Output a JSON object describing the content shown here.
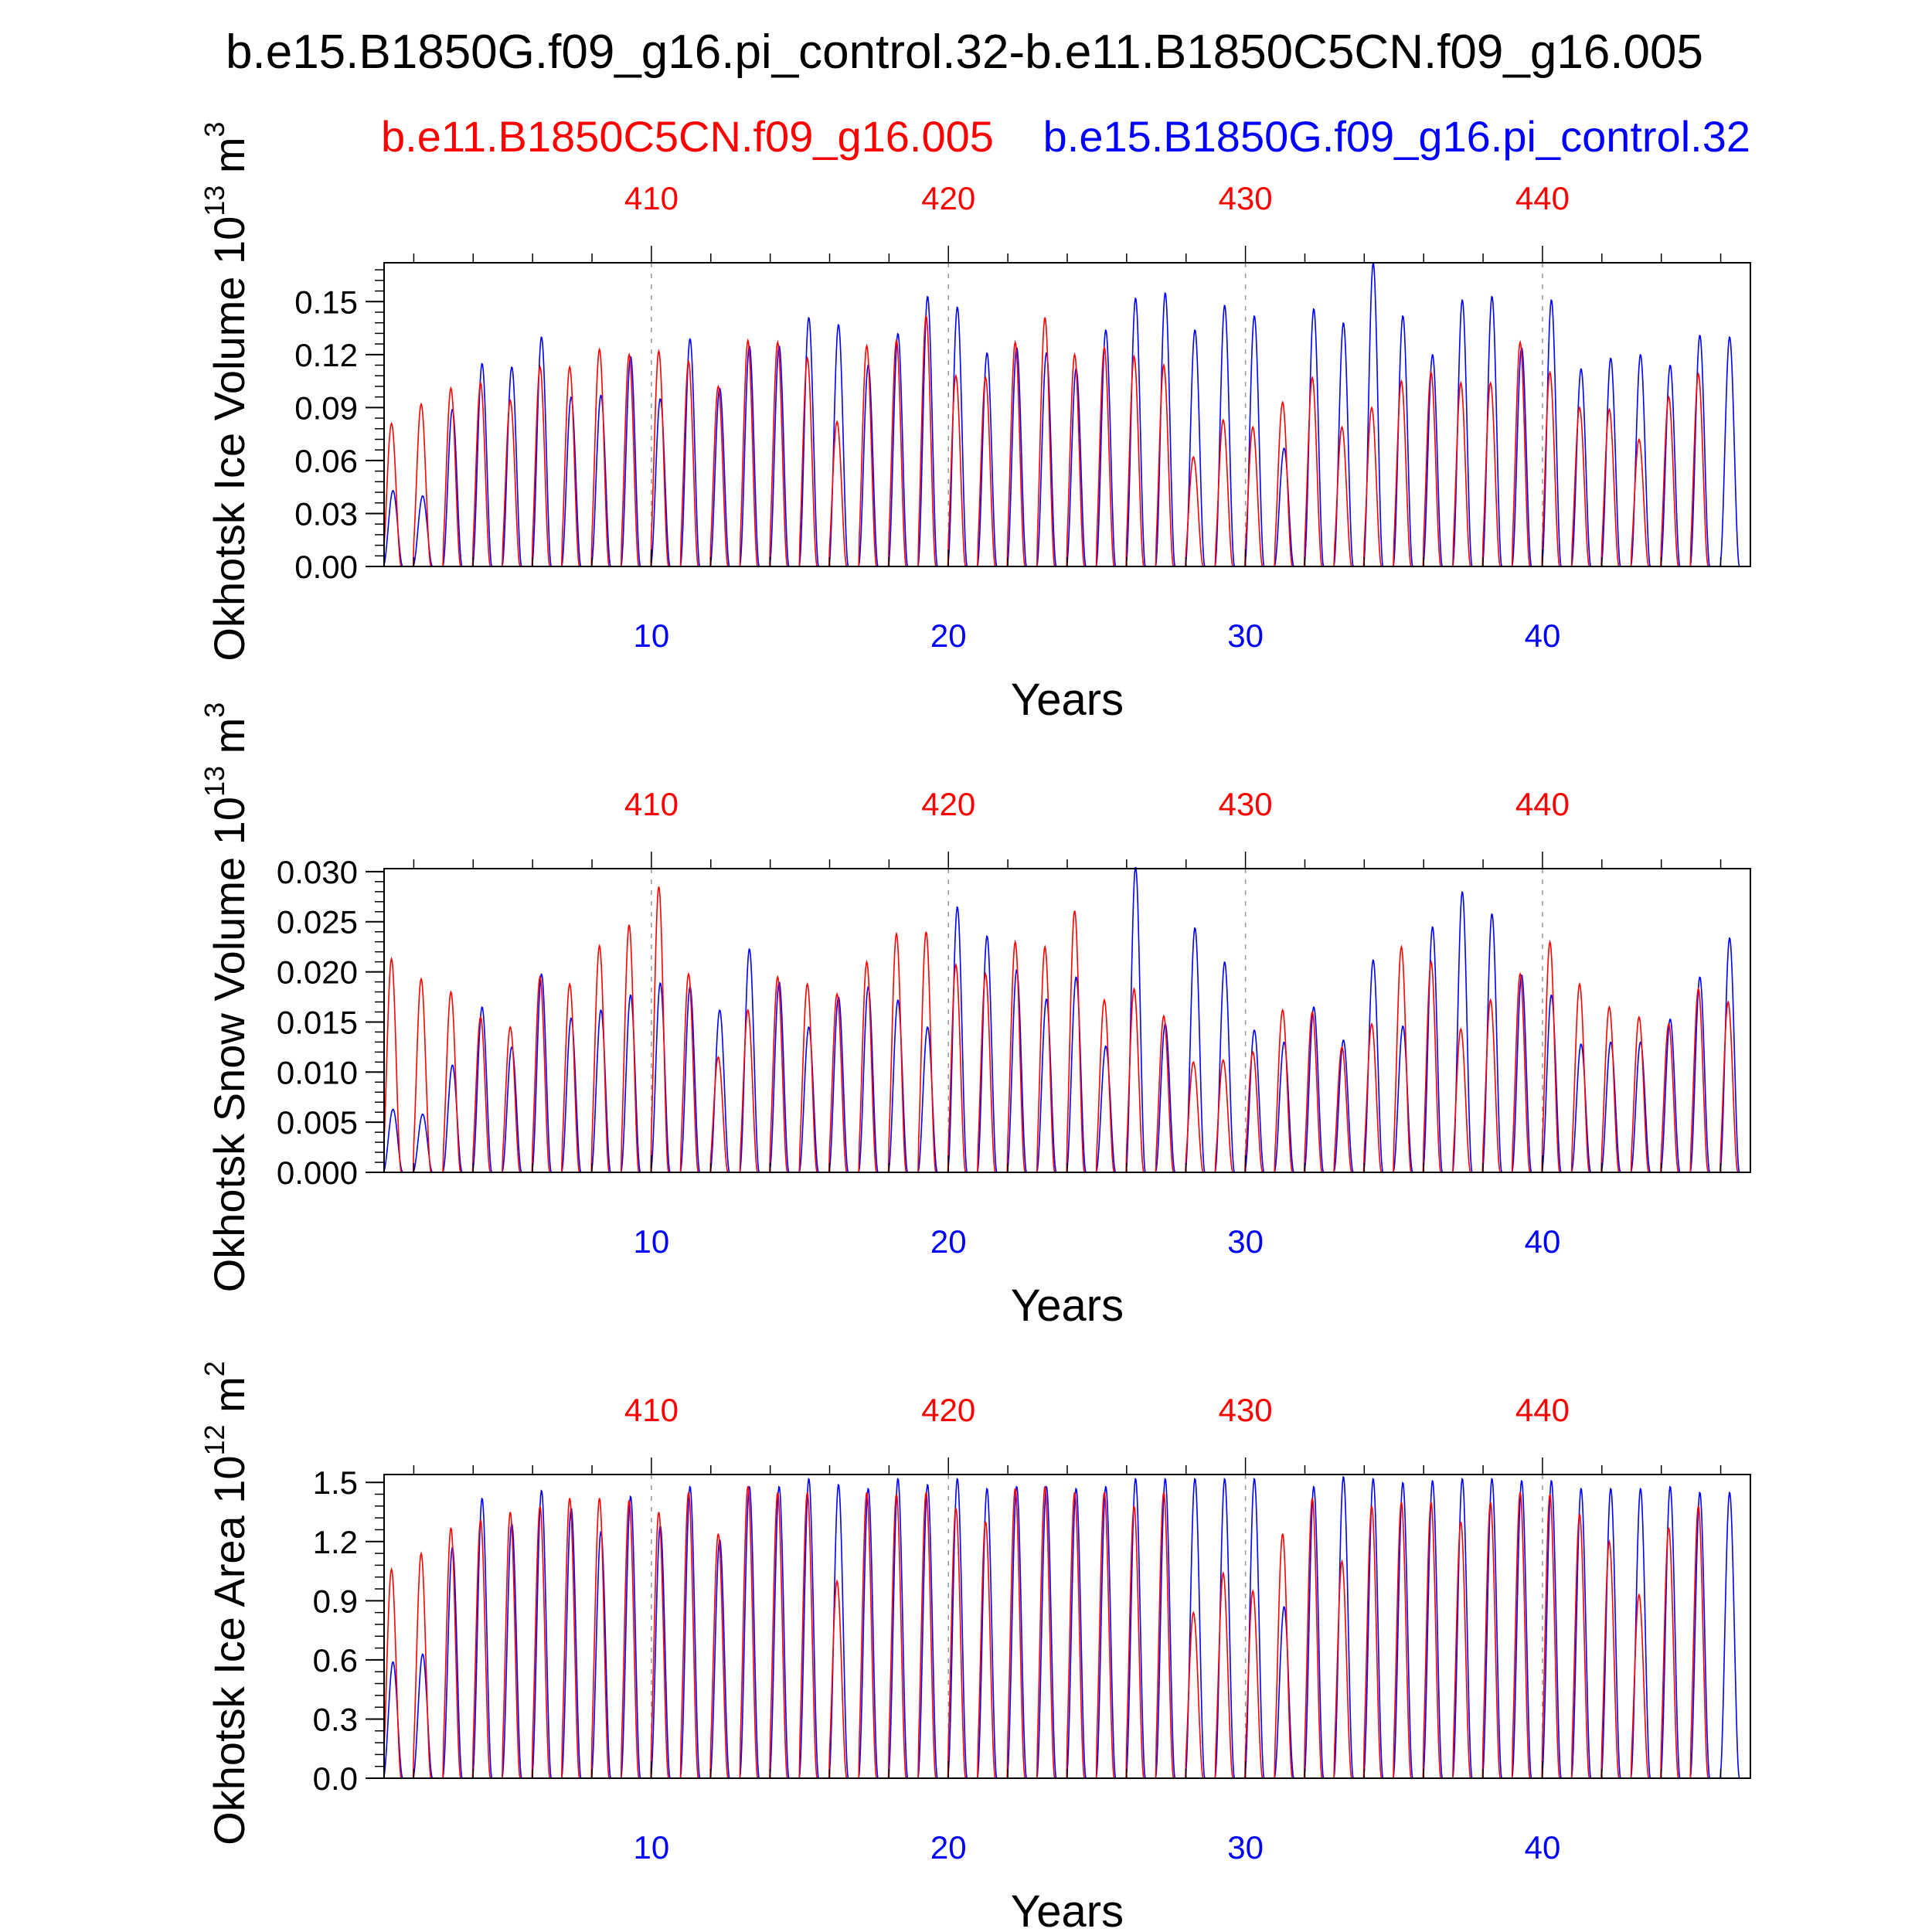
{
  "title": "b.e15.B1850G.f09_g16.pi_control.32-b.e11.B1850C5CN.f09_g16.005",
  "legend": {
    "red_label": "b.e11.B1850C5CN.f09_g16.005",
    "blue_label": "b.e15.B1850G.f09_g16.pi_control.32"
  },
  "colors": {
    "red": "#ff0000",
    "blue": "#0000ff",
    "axis": "#000000",
    "refline": "#999999"
  },
  "chart_data": [
    {
      "type": "line",
      "ylabel": "Okhotsk Ice Volume 10",
      "ylabel_exp": "13",
      "ylabel_unit": " m",
      "ylabel_unit_exp": "3",
      "xlabel": "Years",
      "xlim": [
        1,
        47
      ],
      "ylim": [
        0,
        0.172
      ],
      "yticks": [
        0.0,
        0.03,
        0.06,
        0.09,
        0.12,
        0.15
      ],
      "ytick_labels": [
        "0.00",
        "0.03",
        "0.06",
        "0.09",
        "0.12",
        "0.15"
      ],
      "x_bottom_ticks": [
        10,
        20,
        30,
        40
      ],
      "x_bottom_tick_labels": [
        "10",
        "20",
        "30",
        "40"
      ],
      "x_top_ticks": [
        10,
        20,
        30,
        40
      ],
      "x_top_tick_labels": [
        "410",
        "420",
        "430",
        "440"
      ],
      "series": [
        {
          "name": "b.e11.B1850C5CN.f09_g16.005",
          "color": "red",
          "year_peaks": [
            0.081,
            0.092,
            0.101,
            0.104,
            0.094,
            0.113,
            0.113,
            0.123,
            0.12,
            0.122,
            0.116,
            0.102,
            0.128,
            0.127,
            0.118,
            0.082,
            0.125,
            0.128,
            0.142,
            0.108,
            0.107,
            0.127,
            0.141,
            0.12,
            0.124,
            0.119,
            0.114,
            0.062,
            0.083,
            0.079,
            0.093,
            0.107,
            0.079,
            0.09,
            0.105,
            0.11,
            0.104,
            0.104,
            0.127,
            0.11,
            0.09,
            0.089,
            0.072,
            0.096,
            0.109
          ]
        },
        {
          "name": "b.e15.B1850G.f09_g16.pi_control.32",
          "color": "blue",
          "year_peaks": [
            0.043,
            0.04,
            0.089,
            0.115,
            0.113,
            0.13,
            0.096,
            0.097,
            0.119,
            0.095,
            0.129,
            0.101,
            0.125,
            0.125,
            0.141,
            0.137,
            0.114,
            0.132,
            0.153,
            0.147,
            0.121,
            0.124,
            0.121,
            0.112,
            0.134,
            0.152,
            0.155,
            0.134,
            0.148,
            0.142,
            0.067,
            0.146,
            0.138,
            0.172,
            0.142,
            0.12,
            0.151,
            0.153,
            0.124,
            0.151,
            0.112,
            0.118,
            0.12,
            0.114,
            0.131,
            0.13
          ]
        }
      ]
    },
    {
      "type": "line",
      "ylabel": "Okhotsk Snow Volume 10",
      "ylabel_exp": "13",
      "ylabel_unit": " m",
      "ylabel_unit_exp": "3",
      "xlabel": "Years",
      "xlim": [
        1,
        47
      ],
      "ylim": [
        0,
        0.0303
      ],
      "yticks": [
        0.0,
        0.005,
        0.01,
        0.015,
        0.02,
        0.025,
        0.03
      ],
      "ytick_labels": [
        "0.000",
        "0.005",
        "0.010",
        "0.015",
        "0.020",
        "0.025",
        "0.030"
      ],
      "x_bottom_ticks": [
        10,
        20,
        30,
        40
      ],
      "x_bottom_tick_labels": [
        "10",
        "20",
        "30",
        "40"
      ],
      "x_top_ticks": [
        10,
        20,
        30,
        40
      ],
      "x_top_tick_labels": [
        "410",
        "420",
        "430",
        "440"
      ],
      "series": [
        {
          "name": "b.e11.B1850C5CN.f09_g16.005",
          "color": "red",
          "year_peaks": [
            0.0213,
            0.0193,
            0.018,
            0.0155,
            0.0145,
            0.0195,
            0.0188,
            0.0226,
            0.0247,
            0.0285,
            0.0198,
            0.0115,
            0.0162,
            0.0195,
            0.0188,
            0.0178,
            0.021,
            0.0238,
            0.024,
            0.0207,
            0.0198,
            0.023,
            0.0225,
            0.0261,
            0.0172,
            0.0183,
            0.0156,
            0.011,
            0.0112,
            0.012,
            0.0162,
            0.016,
            0.0125,
            0.0148,
            0.0225,
            0.021,
            0.0143,
            0.0172,
            0.0198,
            0.023,
            0.0188,
            0.0165,
            0.0155,
            0.0148,
            0.0183,
            0.017
          ]
        },
        {
          "name": "b.e15.B1850G.f09_g16.pi_control.32",
          "color": "blue",
          "year_peaks": [
            0.0063,
            0.0058,
            0.0107,
            0.0165,
            0.0125,
            0.0198,
            0.0154,
            0.0162,
            0.0177,
            0.0189,
            0.0185,
            0.0162,
            0.0223,
            0.019,
            0.0145,
            0.0175,
            0.0185,
            0.0172,
            0.0145,
            0.0265,
            0.0236,
            0.0202,
            0.0173,
            0.0195,
            0.0126,
            0.0305,
            0.0148,
            0.0244,
            0.021,
            0.0142,
            0.013,
            0.0165,
            0.0132,
            0.0212,
            0.0146,
            0.0245,
            0.028,
            0.0258,
            0.0197,
            0.0177,
            0.0128,
            0.013,
            0.013,
            0.0153,
            0.0195,
            0.0234
          ]
        }
      ]
    },
    {
      "type": "line",
      "ylabel": "Okhotsk Ice Area 10",
      "ylabel_exp": "12",
      "ylabel_unit": " m",
      "ylabel_unit_exp": "2",
      "xlabel": "Years",
      "xlim": [
        1,
        47
      ],
      "ylim": [
        0,
        1.54
      ],
      "yticks": [
        0.0,
        0.3,
        0.6,
        0.9,
        1.2,
        1.5
      ],
      "ytick_labels": [
        "0.0",
        "0.3",
        "0.6",
        "0.9",
        "1.2",
        "1.5"
      ],
      "x_bottom_ticks": [
        10,
        20,
        30,
        40
      ],
      "x_bottom_tick_labels": [
        "10",
        "20",
        "30",
        "40"
      ],
      "x_top_ticks": [
        10,
        20,
        30,
        40
      ],
      "x_top_tick_labels": [
        "410",
        "420",
        "430",
        "440"
      ],
      "series": [
        {
          "name": "b.e11.B1850C5CN.f09_g16.005",
          "color": "red",
          "year_peaks": [
            1.06,
            1.14,
            1.27,
            1.31,
            1.35,
            1.38,
            1.42,
            1.42,
            1.41,
            1.35,
            1.45,
            1.24,
            1.48,
            1.45,
            1.45,
            1.0,
            1.45,
            1.44,
            1.45,
            1.37,
            1.3,
            1.47,
            1.48,
            1.45,
            1.45,
            1.38,
            1.45,
            0.84,
            1.04,
            0.95,
            1.24,
            1.42,
            1.1,
            1.38,
            1.4,
            1.4,
            1.3,
            1.4,
            1.45,
            1.44,
            1.34,
            1.2,
            0.93,
            1.27,
            1.38
          ]
        },
        {
          "name": "b.e15.B1850G.f09_g16.pi_control.32",
          "color": "blue",
          "year_peaks": [
            0.59,
            0.63,
            1.17,
            1.42,
            1.29,
            1.46,
            1.37,
            1.25,
            1.43,
            1.28,
            1.48,
            1.21,
            1.48,
            1.48,
            1.52,
            1.49,
            1.47,
            1.52,
            1.49,
            1.52,
            1.47,
            1.48,
            1.48,
            1.47,
            1.48,
            1.52,
            1.52,
            1.52,
            1.52,
            1.52,
            0.87,
            1.48,
            1.53,
            1.52,
            1.5,
            1.51,
            1.52,
            1.52,
            1.51,
            1.51,
            1.47,
            1.47,
            1.47,
            1.48,
            1.45,
            1.45
          ]
        }
      ]
    }
  ]
}
